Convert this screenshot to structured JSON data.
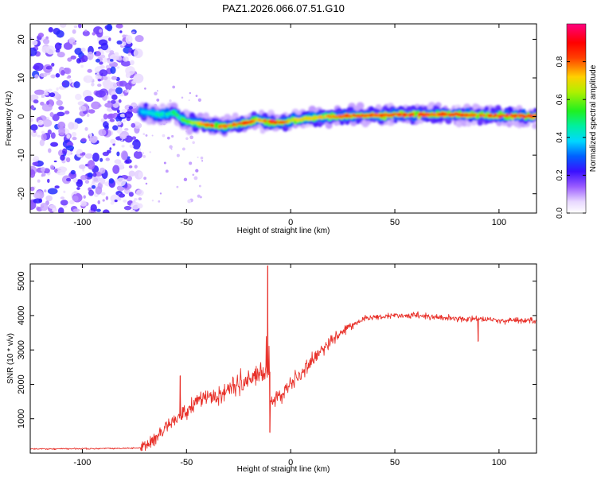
{
  "title": "PAZ1.2026.066.07.51.G10",
  "chart_data": [
    {
      "type": "heatmap",
      "title": "PAZ1.2026.066.07.51.G10",
      "xlabel": "Height of straight line (km)",
      "ylabel": "Frequency (Hz)",
      "xlim": [
        -125,
        118
      ],
      "ylim": [
        -25,
        24
      ],
      "xticks": [
        -100,
        -50,
        0,
        50,
        100
      ],
      "yticks": [
        -20,
        -10,
        0,
        10,
        20
      ],
      "xtick_labels": [
        "-100",
        "-50",
        "0",
        "50",
        "100"
      ],
      "ytick_labels": [
        "-20",
        "-10",
        "0",
        "10",
        "20"
      ],
      "colorbar": {
        "label": "Normalized spectral amplitude",
        "range": [
          0,
          1
        ],
        "ticks": [
          0.0,
          0.2,
          0.4,
          0.6,
          0.8
        ],
        "tick_labels": [
          "0.0",
          "0.2",
          "0.4",
          "0.6",
          "0.8"
        ],
        "colormap": "rainbow (white-purple-blue-cyan-green-yellow-red-magenta)"
      },
      "noise_region_x": [
        -125,
        -72
      ],
      "signal_track": {
        "x": [
          -72,
          -68,
          -64,
          -60,
          -56,
          -52,
          -48,
          -44,
          -40,
          -36,
          -32,
          -28,
          -24,
          -20,
          -16,
          -12,
          -8,
          -4,
          0,
          10,
          20,
          30,
          40,
          50,
          60,
          70,
          80,
          90,
          100,
          110,
          118
        ],
        "frequency": [
          1.2,
          1.0,
          0.6,
          0.5,
          1.0,
          -0.8,
          -1.5,
          -1.8,
          -2.2,
          -2.4,
          -2.6,
          -2.2,
          -1.8,
          -1.6,
          -0.8,
          -1.2,
          -1.5,
          -1.6,
          -1.0,
          -0.4,
          0.0,
          0.2,
          0.3,
          0.4,
          0.5,
          0.6,
          0.5,
          0.3,
          0.2,
          0.1,
          0.1
        ],
        "amplitude": [
          0.35,
          0.4,
          0.45,
          0.45,
          0.5,
          0.55,
          0.6,
          0.7,
          0.8,
          0.85,
          0.75,
          0.8,
          0.85,
          0.85,
          0.7,
          0.8,
          0.85,
          0.85,
          0.7,
          0.7,
          0.75,
          0.85,
          0.8,
          0.85,
          0.85,
          0.8,
          0.85,
          0.8,
          0.85,
          0.8,
          0.9
        ]
      }
    },
    {
      "type": "line",
      "xlabel": "Height of straight line (km)",
      "ylabel": "SNR (10 * v/v)",
      "xlim": [
        -125,
        118
      ],
      "ylim": [
        0,
        5500
      ],
      "xticks": [
        -100,
        -50,
        0,
        50,
        100
      ],
      "yticks": [
        1000,
        2000,
        3000,
        4000,
        5000
      ],
      "xtick_labels": [
        "-100",
        "-50",
        "0",
        "50",
        "100"
      ],
      "ytick_labels": [
        "1000",
        "2000",
        "3000",
        "4000",
        "5000"
      ],
      "color": "#e8312a",
      "series": [
        {
          "x": [
            -125,
            -100,
            -80,
            -72,
            -65,
            -60,
            -55,
            -50,
            -45,
            -40,
            -35,
            -30,
            -25,
            -20,
            -15,
            -12,
            -11,
            -10,
            -5,
            0,
            5,
            10,
            15,
            20,
            25,
            30,
            35,
            40,
            50,
            60,
            70,
            80,
            90,
            100,
            110,
            118
          ],
          "y": [
            120,
            130,
            140,
            150,
            450,
            800,
            1000,
            1200,
            1500,
            1600,
            1700,
            1850,
            2000,
            2150,
            2300,
            2400,
            5400,
            1500,
            1700,
            2000,
            2300,
            2650,
            3000,
            3300,
            3550,
            3750,
            3900,
            3950,
            4000,
            4000,
            3950,
            3900,
            3900,
            3850,
            3850,
            3850
          ],
          "spikes": [
            {
              "x": -53,
              "y": 2250
            },
            {
              "x": -11,
              "y": 5450
            },
            {
              "x": -10,
              "y": 600
            },
            {
              "x": 90,
              "y": 3250
            }
          ]
        }
      ]
    }
  ]
}
